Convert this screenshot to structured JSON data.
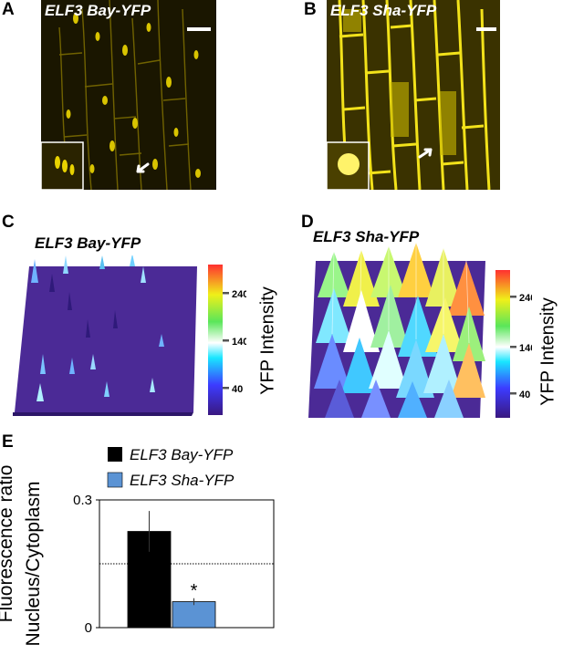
{
  "panels": {
    "A": {
      "letter": "A",
      "title": "ELF3 Bay-YFP"
    },
    "B": {
      "letter": "B",
      "title": "ELF3 Sha-YFP"
    },
    "C": {
      "letter": "C",
      "title": "ELF3 Bay-YFP"
    },
    "D": {
      "letter": "D",
      "title": "ELF3 Sha-YFP"
    },
    "E": {
      "letter": "E"
    }
  },
  "colorbar": {
    "label": "YFP Intensity",
    "ticks": [
      "240",
      "140",
      "40"
    ]
  },
  "colors": {
    "bay": "#000000",
    "sha": "#5b93d4",
    "micro_bg": "#1a1600",
    "micro_signal": "#f2e21a",
    "surface_base": "#4b2a96"
  },
  "chart_data": {
    "type": "bar",
    "categories": [
      "ELF3 Bay-YFP",
      "ELF3 Sha-YFP"
    ],
    "values": [
      0.226,
      0.061
    ],
    "errors": [
      0.048,
      0.008
    ],
    "significance": [
      "",
      "*"
    ],
    "ylabel_line1": "Fluorescence ratio",
    "ylabel_line2": "Nucleus/Cytoplasm",
    "ylim": [
      0,
      0.3
    ],
    "yticks": [
      "0.3",
      "0"
    ],
    "reference_line": 0.15,
    "legend": [
      "ELF3 Bay-YFP",
      "ELF3 Sha-YFP"
    ],
    "legend_position": "top"
  }
}
